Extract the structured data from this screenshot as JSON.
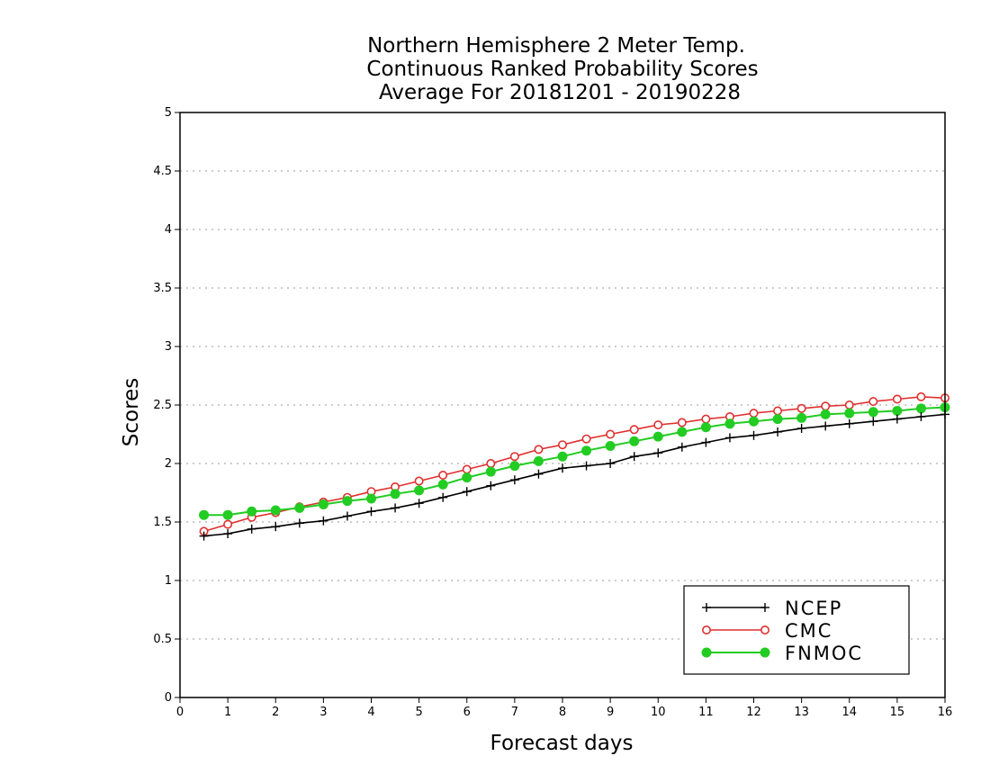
{
  "chart_data": {
    "type": "line",
    "title": [
      "Northern Hemisphere 2 Meter Temp.",
      "Continuous Ranked Probability Scores",
      "Average For 20181201 - 20190228"
    ],
    "xlabel": "Forecast days",
    "ylabel": "Scores",
    "xlim": [
      0,
      16
    ],
    "ylim": [
      0,
      5
    ],
    "xticks": [
      "0",
      "1",
      "2",
      "3",
      "4",
      "5",
      "6",
      "7",
      "8",
      "9",
      "10",
      "11",
      "12",
      "13",
      "14",
      "15",
      "16"
    ],
    "yticks": [
      "0",
      "0.5",
      "1",
      "1.5",
      "2",
      "2.5",
      "3",
      "3.5",
      "4",
      "4.5",
      "5"
    ],
    "grid": true,
    "legend_position": "bottom-right",
    "x": [
      0.5,
      1,
      1.5,
      2,
      2.5,
      3,
      3.5,
      4,
      4.5,
      5,
      5.5,
      6,
      6.5,
      7,
      7.5,
      8,
      8.5,
      9,
      9.5,
      10,
      10.5,
      11,
      11.5,
      12,
      12.5,
      13,
      13.5,
      14,
      14.5,
      15,
      15.5,
      16
    ],
    "series": [
      {
        "name": "NCEP",
        "color": "#000000",
        "marker": "plus",
        "values": [
          1.38,
          1.4,
          1.44,
          1.46,
          1.49,
          1.51,
          1.55,
          1.59,
          1.62,
          1.66,
          1.71,
          1.76,
          1.81,
          1.86,
          1.91,
          1.96,
          1.98,
          2.0,
          2.06,
          2.09,
          2.14,
          2.18,
          2.22,
          2.24,
          2.27,
          2.3,
          2.32,
          2.34,
          2.36,
          2.38,
          2.4,
          2.42
        ]
      },
      {
        "name": "CMC",
        "color": "#e03030",
        "marker": "open-circle",
        "values": [
          1.42,
          1.48,
          1.54,
          1.58,
          1.63,
          1.67,
          1.71,
          1.76,
          1.8,
          1.85,
          1.9,
          1.95,
          2.0,
          2.06,
          2.12,
          2.16,
          2.21,
          2.25,
          2.29,
          2.33,
          2.35,
          2.38,
          2.4,
          2.43,
          2.45,
          2.47,
          2.49,
          2.5,
          2.53,
          2.55,
          2.57,
          2.56
        ]
      },
      {
        "name": "FNMOC",
        "color": "#22cc22",
        "marker": "filled-circle",
        "values": [
          1.56,
          1.56,
          1.59,
          1.6,
          1.62,
          1.65,
          1.68,
          1.7,
          1.74,
          1.77,
          1.82,
          1.88,
          1.93,
          1.98,
          2.02,
          2.06,
          2.11,
          2.15,
          2.19,
          2.23,
          2.27,
          2.31,
          2.34,
          2.36,
          2.38,
          2.39,
          2.42,
          2.43,
          2.44,
          2.45,
          2.47,
          2.48
        ]
      }
    ]
  }
}
